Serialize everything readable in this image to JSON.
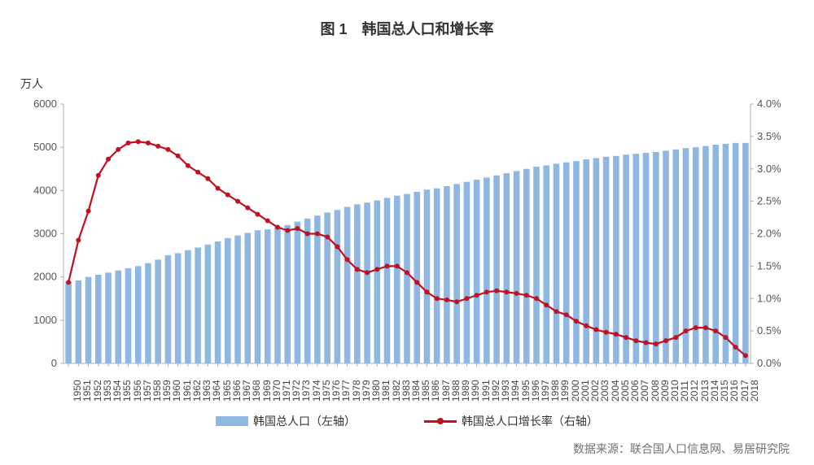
{
  "title": "图 1　韩国总人口和增长率",
  "title_fontsize": 18,
  "y_left_unit": "万人",
  "source_label": "数据来源：联合国人口信息网、易居研究院",
  "legend": {
    "series1": "韩国总人口（左轴）",
    "series2": "韩国总人口增长率（右轴）"
  },
  "colors": {
    "bar": "#8eb7e2",
    "line": "#c4101e",
    "grid_axis": "#b0b0b0",
    "background": "#ffffff",
    "text": "#444444"
  },
  "chart": {
    "type": "combo-bar-line",
    "y_left": {
      "min": 0,
      "max": 6000,
      "step": 1000
    },
    "y_right": {
      "min": 0.0,
      "max": 4.0,
      "step": 0.5,
      "suffix": "%",
      "decimals": 1
    },
    "years": [
      1950,
      1951,
      1952,
      1953,
      1954,
      1955,
      1956,
      1957,
      1958,
      1959,
      1960,
      1961,
      1962,
      1963,
      1964,
      1965,
      1966,
      1967,
      1968,
      1969,
      1970,
      1971,
      1972,
      1973,
      1974,
      1975,
      1976,
      1977,
      1978,
      1979,
      1980,
      1981,
      1982,
      1983,
      1984,
      1985,
      1986,
      1987,
      1988,
      1989,
      1990,
      1991,
      1992,
      1993,
      1994,
      1995,
      1996,
      1997,
      1998,
      1999,
      2000,
      2001,
      2002,
      2003,
      2004,
      2005,
      2006,
      2007,
      2008,
      2009,
      2010,
      2011,
      2012,
      2013,
      2014,
      2015,
      2016,
      2017,
      2018
    ],
    "population": [
      1900,
      1920,
      2000,
      2050,
      2100,
      2150,
      2200,
      2250,
      2320,
      2400,
      2500,
      2550,
      2620,
      2680,
      2750,
      2820,
      2900,
      2960,
      3020,
      3080,
      3100,
      3150,
      3200,
      3280,
      3350,
      3420,
      3490,
      3550,
      3620,
      3680,
      3720,
      3770,
      3830,
      3880,
      3920,
      3970,
      4020,
      4050,
      4100,
      4150,
      4200,
      4250,
      4300,
      4350,
      4400,
      4450,
      4500,
      4550,
      4580,
      4620,
      4650,
      4680,
      4720,
      4750,
      4780,
      4800,
      4830,
      4850,
      4870,
      4890,
      4920,
      4950,
      4980,
      5000,
      5030,
      5060,
      5080,
      5100,
      5100
    ],
    "growth": [
      1.25,
      1.9,
      2.35,
      2.9,
      3.15,
      3.3,
      3.4,
      3.42,
      3.4,
      3.35,
      3.3,
      3.2,
      3.05,
      2.95,
      2.85,
      2.7,
      2.6,
      2.5,
      2.4,
      2.3,
      2.2,
      2.1,
      2.05,
      2.08,
      2.0,
      2.0,
      1.95,
      1.8,
      1.6,
      1.45,
      1.4,
      1.45,
      1.5,
      1.5,
      1.4,
      1.25,
      1.1,
      1.0,
      0.98,
      0.95,
      1.0,
      1.05,
      1.1,
      1.12,
      1.1,
      1.08,
      1.05,
      1.0,
      0.9,
      0.8,
      0.75,
      0.65,
      0.58,
      0.52,
      0.48,
      0.45,
      0.4,
      0.35,
      0.32,
      0.3,
      0.35,
      0.4,
      0.5,
      0.55,
      0.55,
      0.5,
      0.4,
      0.25,
      0.12
    ],
    "bar_width_ratio": 0.62,
    "line_width": 2.2,
    "marker_radius": 3.0
  }
}
